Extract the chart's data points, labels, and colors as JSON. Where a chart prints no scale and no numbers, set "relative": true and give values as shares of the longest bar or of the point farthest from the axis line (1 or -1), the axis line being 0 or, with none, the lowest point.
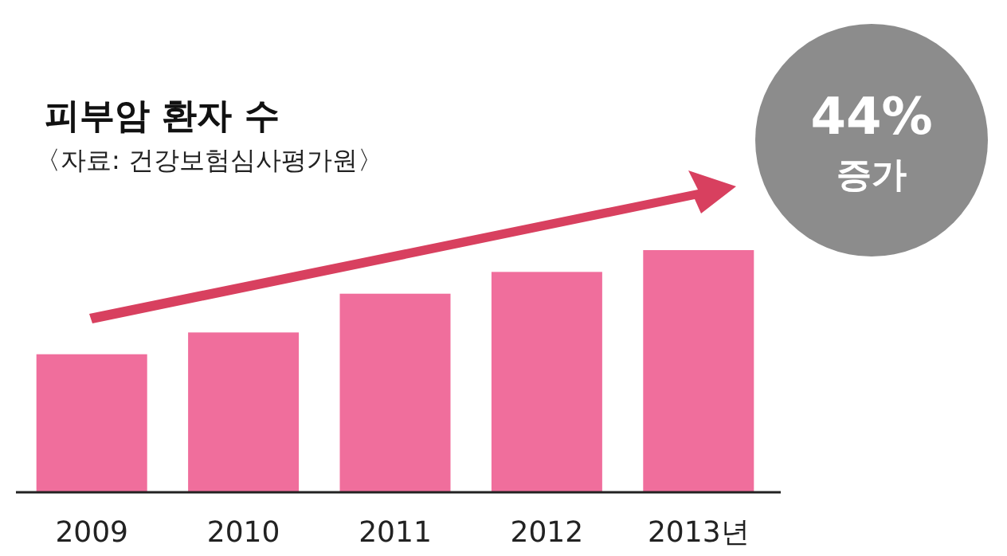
{
  "chart_data": {
    "type": "bar",
    "title": "피부암 환자 수",
    "subtitle": "〈자료: 건강보험심사평가원〉",
    "categories": [
      "2009",
      "2010",
      "2011",
      "2012",
      "2013년"
    ],
    "values": [
      0.57,
      0.66,
      0.82,
      0.91,
      1
    ],
    "color": "#f06e9c",
    "relative": true,
    "annotations": [
      "44%",
      "증가"
    ]
  }
}
